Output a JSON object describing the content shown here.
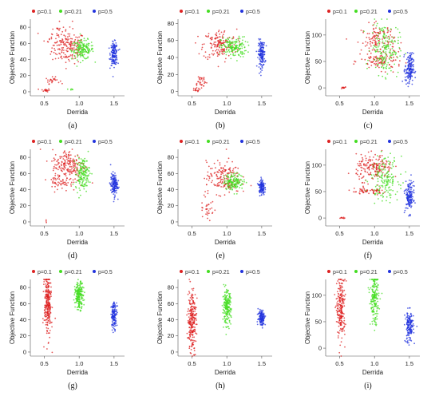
{
  "legend": [
    {
      "label": "p=0.1",
      "color": "#dd2222"
    },
    {
      "label": "p=0.21",
      "color": "#44dd22"
    },
    {
      "label": "p=0.5",
      "color": "#2233dd"
    }
  ],
  "xlabel": "Derrida",
  "ylabel": "Objective Function",
  "chart_data": [
    {
      "type": "scatter",
      "panel": "(a)",
      "xlabel": "Derrida",
      "ylabel": "Objective Function",
      "xticks": [
        "0.5",
        "1.0",
        "1.5"
      ],
      "yticks": [
        "0",
        "20",
        "40",
        "60",
        "80"
      ],
      "xlim": [
        0.3,
        1.65
      ],
      "ylim": [
        -5,
        90
      ],
      "series": [
        {
          "name": "p=0.1",
          "color": "#dd2222",
          "clusters": [
            [
              0.85,
              55,
              0.12,
              10,
              160
            ],
            [
              0.52,
              2,
              0.03,
              1,
              20
            ],
            [
              0.62,
              14,
              0.05,
              2,
              25
            ],
            [
              0.7,
              70,
              0.1,
              10,
              40
            ]
          ]
        },
        {
          "name": "p=0.21",
          "color": "#44dd22",
          "clusters": [
            [
              1.05,
              52,
              0.08,
              6,
              160
            ],
            [
              0.88,
              3,
              0.03,
              1,
              6
            ]
          ]
        },
        {
          "name": "p=0.5",
          "color": "#2233dd",
          "clusters": [
            [
              1.5,
              47,
              0.025,
              7,
              150
            ]
          ]
        }
      ]
    },
    {
      "type": "scatter",
      "panel": "(b)",
      "xlabel": "Derrida",
      "ylabel": "Objective Function",
      "xticks": [
        "0.5",
        "1.0",
        "1.5"
      ],
      "yticks": [
        "0",
        "20",
        "40",
        "60",
        "80"
      ],
      "xlim": [
        0.3,
        1.65
      ],
      "ylim": [
        -5,
        85
      ],
      "series": [
        {
          "name": "p=0.1",
          "color": "#dd2222",
          "clusters": [
            [
              0.9,
              55,
              0.12,
              9,
              160
            ],
            [
              0.62,
              12,
              0.05,
              4,
              30
            ],
            [
              0.55,
              2,
              0.03,
              1,
              15
            ]
          ]
        },
        {
          "name": "p=0.21",
          "color": "#44dd22",
          "clusters": [
            [
              1.1,
              52,
              0.09,
              6,
              160
            ]
          ]
        },
        {
          "name": "p=0.5",
          "color": "#2233dd",
          "clusters": [
            [
              1.5,
              44,
              0.025,
              8,
              150
            ]
          ]
        }
      ]
    },
    {
      "type": "scatter",
      "panel": "(c)",
      "xlabel": "Derrida",
      "ylabel": "Objective Function",
      "xticks": [
        "0.5",
        "1.0",
        "1.5"
      ],
      "yticks": [
        "0",
        "50",
        "100"
      ],
      "xlim": [
        0.3,
        1.65
      ],
      "ylim": [
        -15,
        130
      ],
      "series": [
        {
          "name": "p=0.1",
          "color": "#dd2222",
          "clusters": [
            [
              1.05,
              90,
              0.12,
              15,
              130
            ],
            [
              1.1,
              50,
              0.15,
              8,
              90
            ],
            [
              0.55,
              0,
              0.02,
              1,
              15
            ]
          ]
        },
        {
          "name": "p=0.21",
          "color": "#44dd22",
          "clusters": [
            [
              1.15,
              75,
              0.1,
              25,
              170
            ]
          ]
        },
        {
          "name": "p=0.5",
          "color": "#2233dd",
          "clusters": [
            [
              1.5,
              35,
              0.03,
              15,
              160
            ]
          ]
        }
      ]
    },
    {
      "type": "scatter",
      "panel": "(d)",
      "xlabel": "Derrida",
      "ylabel": "Objective Function",
      "xticks": [
        "0.5",
        "1.0",
        "1.5"
      ],
      "yticks": [
        "0",
        "20",
        "40",
        "60",
        "80"
      ],
      "xlim": [
        0.3,
        1.65
      ],
      "ylim": [
        -5,
        90
      ],
      "series": [
        {
          "name": "p=0.1",
          "color": "#dd2222",
          "clusters": [
            [
              0.85,
              70,
              0.12,
              10,
              190
            ],
            [
              0.75,
              50,
              0.1,
              6,
              50
            ],
            [
              0.53,
              1,
              0.01,
              1,
              3
            ]
          ]
        },
        {
          "name": "p=0.21",
          "color": "#44dd22",
          "clusters": [
            [
              1.05,
              60,
              0.05,
              10,
              160
            ]
          ]
        },
        {
          "name": "p=0.5",
          "color": "#2233dd",
          "clusters": [
            [
              1.5,
              46,
              0.025,
              7,
              150
            ]
          ]
        }
      ]
    },
    {
      "type": "scatter",
      "panel": "(e)",
      "xlabel": "Derrida",
      "ylabel": "Objective Function",
      "xticks": [
        "0.5",
        "1.0",
        "1.5"
      ],
      "yticks": [
        "0",
        "20",
        "40",
        "60",
        "80"
      ],
      "xlim": [
        0.3,
        1.65
      ],
      "ylim": [
        -5,
        90
      ],
      "series": [
        {
          "name": "p=0.1",
          "color": "#dd2222",
          "clusters": [
            [
              0.95,
              55,
              0.12,
              10,
              170
            ],
            [
              0.72,
              20,
              0.05,
              12,
              35
            ]
          ]
        },
        {
          "name": "p=0.21",
          "color": "#44dd22",
          "clusters": [
            [
              1.1,
              50,
              0.07,
              5,
              150
            ]
          ]
        },
        {
          "name": "p=0.5",
          "color": "#2233dd",
          "clusters": [
            [
              1.5,
              43,
              0.02,
              5,
              120
            ]
          ]
        }
      ]
    },
    {
      "type": "scatter",
      "panel": "(f)",
      "xlabel": "Derrida",
      "ylabel": "Objective Function",
      "xticks": [
        "0.5",
        "1.0",
        "1.5"
      ],
      "yticks": [
        "0",
        "50",
        "100"
      ],
      "xlim": [
        0.3,
        1.65
      ],
      "ylim": [
        -15,
        130
      ],
      "series": [
        {
          "name": "p=0.1",
          "color": "#dd2222",
          "clusters": [
            [
              1.0,
              95,
              0.13,
              12,
              180
            ],
            [
              0.9,
              50,
              0.15,
              3,
              60
            ],
            [
              0.55,
              0,
              0.03,
              1,
              10
            ]
          ]
        },
        {
          "name": "p=0.21",
          "color": "#44dd22",
          "clusters": [
            [
              1.15,
              75,
              0.1,
              20,
              160
            ]
          ]
        },
        {
          "name": "p=0.5",
          "color": "#2233dd",
          "clusters": [
            [
              1.5,
              40,
              0.03,
              15,
              150
            ]
          ]
        }
      ]
    },
    {
      "type": "scatter",
      "panel": "(g)",
      "xlabel": "Derrida",
      "ylabel": "Objective Function",
      "xticks": [
        "0.5",
        "1.0",
        "1.5"
      ],
      "yticks": [
        "0",
        "20",
        "40",
        "60",
        "80"
      ],
      "xlim": [
        0.3,
        1.65
      ],
      "ylim": [
        -5,
        90
      ],
      "series": [
        {
          "name": "p=0.1",
          "color": "#dd2222",
          "clusters": [
            [
              0.55,
              60,
              0.025,
              20,
              260
            ]
          ]
        },
        {
          "name": "p=0.21",
          "color": "#44dd22",
          "clusters": [
            [
              1.0,
              70,
              0.03,
              8,
              200
            ]
          ]
        },
        {
          "name": "p=0.5",
          "color": "#2233dd",
          "clusters": [
            [
              1.5,
              46,
              0.02,
              8,
              140
            ]
          ]
        }
      ]
    },
    {
      "type": "scatter",
      "panel": "(h)",
      "xlabel": "Derrida",
      "ylabel": "Objective Function",
      "xticks": [
        "0.5",
        "1.0",
        "1.5"
      ],
      "yticks": [
        "0",
        "20",
        "40",
        "60",
        "80"
      ],
      "xlim": [
        0.3,
        1.65
      ],
      "ylim": [
        -5,
        90
      ],
      "series": [
        {
          "name": "p=0.1",
          "color": "#dd2222",
          "clusters": [
            [
              0.5,
              40,
              0.03,
              20,
              240
            ]
          ]
        },
        {
          "name": "p=0.21",
          "color": "#44dd22",
          "clusters": [
            [
              1.0,
              55,
              0.03,
              10,
              200
            ]
          ]
        },
        {
          "name": "p=0.5",
          "color": "#2233dd",
          "clusters": [
            [
              1.5,
              43,
              0.025,
              5,
              130
            ]
          ]
        }
      ]
    },
    {
      "type": "scatter",
      "panel": "(i)",
      "xlabel": "Derrida",
      "ylabel": "Objective Function",
      "xticks": [
        "0.5",
        "1.0",
        "1.5"
      ],
      "yticks": [
        "0",
        "50",
        "100"
      ],
      "xlim": [
        0.3,
        1.65
      ],
      "ylim": [
        -15,
        130
      ],
      "series": [
        {
          "name": "p=0.1",
          "color": "#dd2222",
          "clusters": [
            [
              0.52,
              75,
              0.03,
              30,
              220
            ]
          ]
        },
        {
          "name": "p=0.21",
          "color": "#44dd22",
          "clusters": [
            [
              1.0,
              95,
              0.03,
              25,
              200
            ]
          ]
        },
        {
          "name": "p=0.5",
          "color": "#2233dd",
          "clusters": [
            [
              1.5,
              40,
              0.03,
              15,
              150
            ]
          ]
        }
      ]
    }
  ]
}
